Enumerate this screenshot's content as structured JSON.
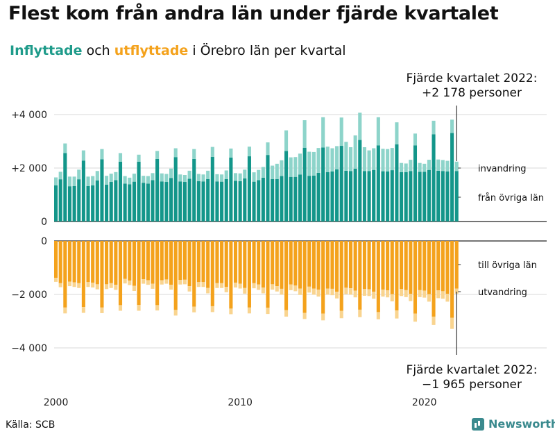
{
  "title": "Flest kom från andra län under fjärde kvartalet",
  "subtitle": {
    "in_word": "Inflyttade",
    "mid": " och ",
    "out_word": "utflyttade",
    "rest": " i Örebro län per kvartal"
  },
  "source": "Källa: SCB",
  "brand": "Newsworthy",
  "colors": {
    "in_dark": "#13968a",
    "in_light": "#8dd4ca",
    "out_dark": "#f4a21c",
    "out_light": "#f9d48f"
  },
  "chart_data": {
    "type": "bar",
    "x_start_year": 2000,
    "x_tick_labels": [
      "2000",
      "2010",
      "2020"
    ],
    "upper": {
      "ylim": [
        0,
        4500
      ],
      "y_ticks": [
        0,
        2000,
        4000
      ],
      "y_tick_labels": [
        "0",
        "+2 000",
        "+4 000"
      ],
      "series": [
        {
          "name": "från övriga län",
          "values": [
            1350,
            1580,
            2560,
            1320,
            1330,
            1580,
            2280,
            1330,
            1350,
            1540,
            2330,
            1380,
            1480,
            1550,
            2240,
            1420,
            1390,
            1490,
            2240,
            1450,
            1420,
            1550,
            2340,
            1500,
            1480,
            1630,
            2410,
            1500,
            1480,
            1600,
            2340,
            1510,
            1500,
            1590,
            2420,
            1500,
            1490,
            1590,
            2390,
            1520,
            1510,
            1610,
            2440,
            1490,
            1550,
            1640,
            2490,
            1590,
            1590,
            1700,
            2640,
            1670,
            1670,
            1760,
            2760,
            1710,
            1720,
            1820,
            2770,
            1850,
            1870,
            1950,
            2830,
            1900,
            1890,
            1980,
            3050,
            1890,
            1890,
            1930,
            2850,
            1880,
            1870,
            1920,
            2890,
            1850,
            1850,
            1890,
            2850,
            1860,
            1860,
            1930,
            3260,
            1900,
            1890,
            1870,
            3310,
            1890
          ]
        },
        {
          "name": "invandring",
          "values": [
            300,
            280,
            360,
            360,
            350,
            360,
            380,
            350,
            350,
            350,
            380,
            330,
            310,
            300,
            320,
            280,
            250,
            300,
            260,
            260,
            280,
            260,
            300,
            300,
            300,
            350,
            330,
            260,
            260,
            300,
            370,
            270,
            260,
            310,
            370,
            270,
            270,
            320,
            340,
            290,
            290,
            330,
            360,
            350,
            380,
            400,
            470,
            500,
            570,
            590,
            770,
            730,
            740,
            780,
            1030,
            900,
            880,
            930,
            1130,
            950,
            870,
            870,
            1060,
            1080,
            890,
            1240,
            1020,
            890,
            770,
            810,
            1050,
            840,
            840,
            830,
            820,
            340,
            320,
            420,
            440,
            330,
            300,
            380,
            510,
            420,
            410,
            400,
            500,
            350
          ]
        }
      ],
      "annotation": {
        "line1": "Fjärde kvartalet 2022:",
        "line2": "+2 178 personer"
      },
      "end_labels": [
        "invandring",
        "från övriga län"
      ]
    },
    "lower": {
      "ylim": [
        -4500,
        0
      ],
      "y_ticks": [
        0,
        -2000,
        -4000
      ],
      "y_tick_labels": [
        "0",
        "−2 000",
        "−4 000"
      ],
      "series": [
        {
          "name": "till övriga län",
          "values": [
            -1380,
            -1580,
            -2490,
            -1520,
            -1550,
            -1580,
            -2470,
            -1540,
            -1560,
            -1620,
            -2490,
            -1620,
            -1580,
            -1640,
            -2400,
            -1420,
            -1480,
            -1680,
            -2390,
            -1430,
            -1470,
            -1600,
            -2400,
            -1470,
            -1440,
            -1640,
            -2580,
            -1460,
            -1450,
            -1690,
            -2460,
            -1540,
            -1540,
            -1760,
            -2440,
            -1580,
            -1580,
            -1720,
            -2530,
            -1560,
            -1600,
            -1760,
            -2490,
            -1580,
            -1630,
            -1740,
            -2500,
            -1620,
            -1690,
            -1790,
            -2590,
            -1630,
            -1670,
            -1780,
            -2690,
            -1710,
            -1780,
            -1820,
            -2720,
            -1780,
            -1790,
            -1900,
            -2610,
            -1750,
            -1770,
            -1860,
            -2570,
            -1800,
            -1810,
            -1900,
            -2660,
            -1820,
            -1850,
            -1990,
            -2600,
            -1800,
            -1840,
            -1980,
            -2720,
            -1840,
            -1860,
            -1990,
            -2830,
            -1850,
            -1880,
            -1980,
            -2870,
            -1780
          ]
        },
        {
          "name": "utvandring",
          "values": [
            -150,
            -150,
            -220,
            -170,
            -170,
            -180,
            -220,
            -180,
            -180,
            -190,
            -210,
            -180,
            -180,
            -190,
            -210,
            -170,
            -170,
            -190,
            -220,
            -170,
            -170,
            -190,
            -200,
            -160,
            -160,
            -180,
            -210,
            -170,
            -170,
            -200,
            -210,
            -180,
            -180,
            -200,
            -220,
            -180,
            -180,
            -200,
            -210,
            -180,
            -180,
            -210,
            -220,
            -190,
            -200,
            -220,
            -230,
            -200,
            -200,
            -220,
            -240,
            -210,
            -210,
            -240,
            -230,
            -220,
            -230,
            -260,
            -250,
            -230,
            -240,
            -250,
            -280,
            -240,
            -240,
            -250,
            -280,
            -250,
            -250,
            -260,
            -270,
            -260,
            -260,
            -270,
            -300,
            -260,
            -260,
            -270,
            -300,
            -260,
            -260,
            -280,
            -310,
            -290,
            -280,
            -290,
            -420,
            -190
          ]
        }
      ],
      "annotation": {
        "line1": "Fjärde kvartalet 2022:",
        "line2": "−1 965 personer"
      },
      "end_labels": [
        "till övriga län",
        "utvandring"
      ]
    }
  }
}
